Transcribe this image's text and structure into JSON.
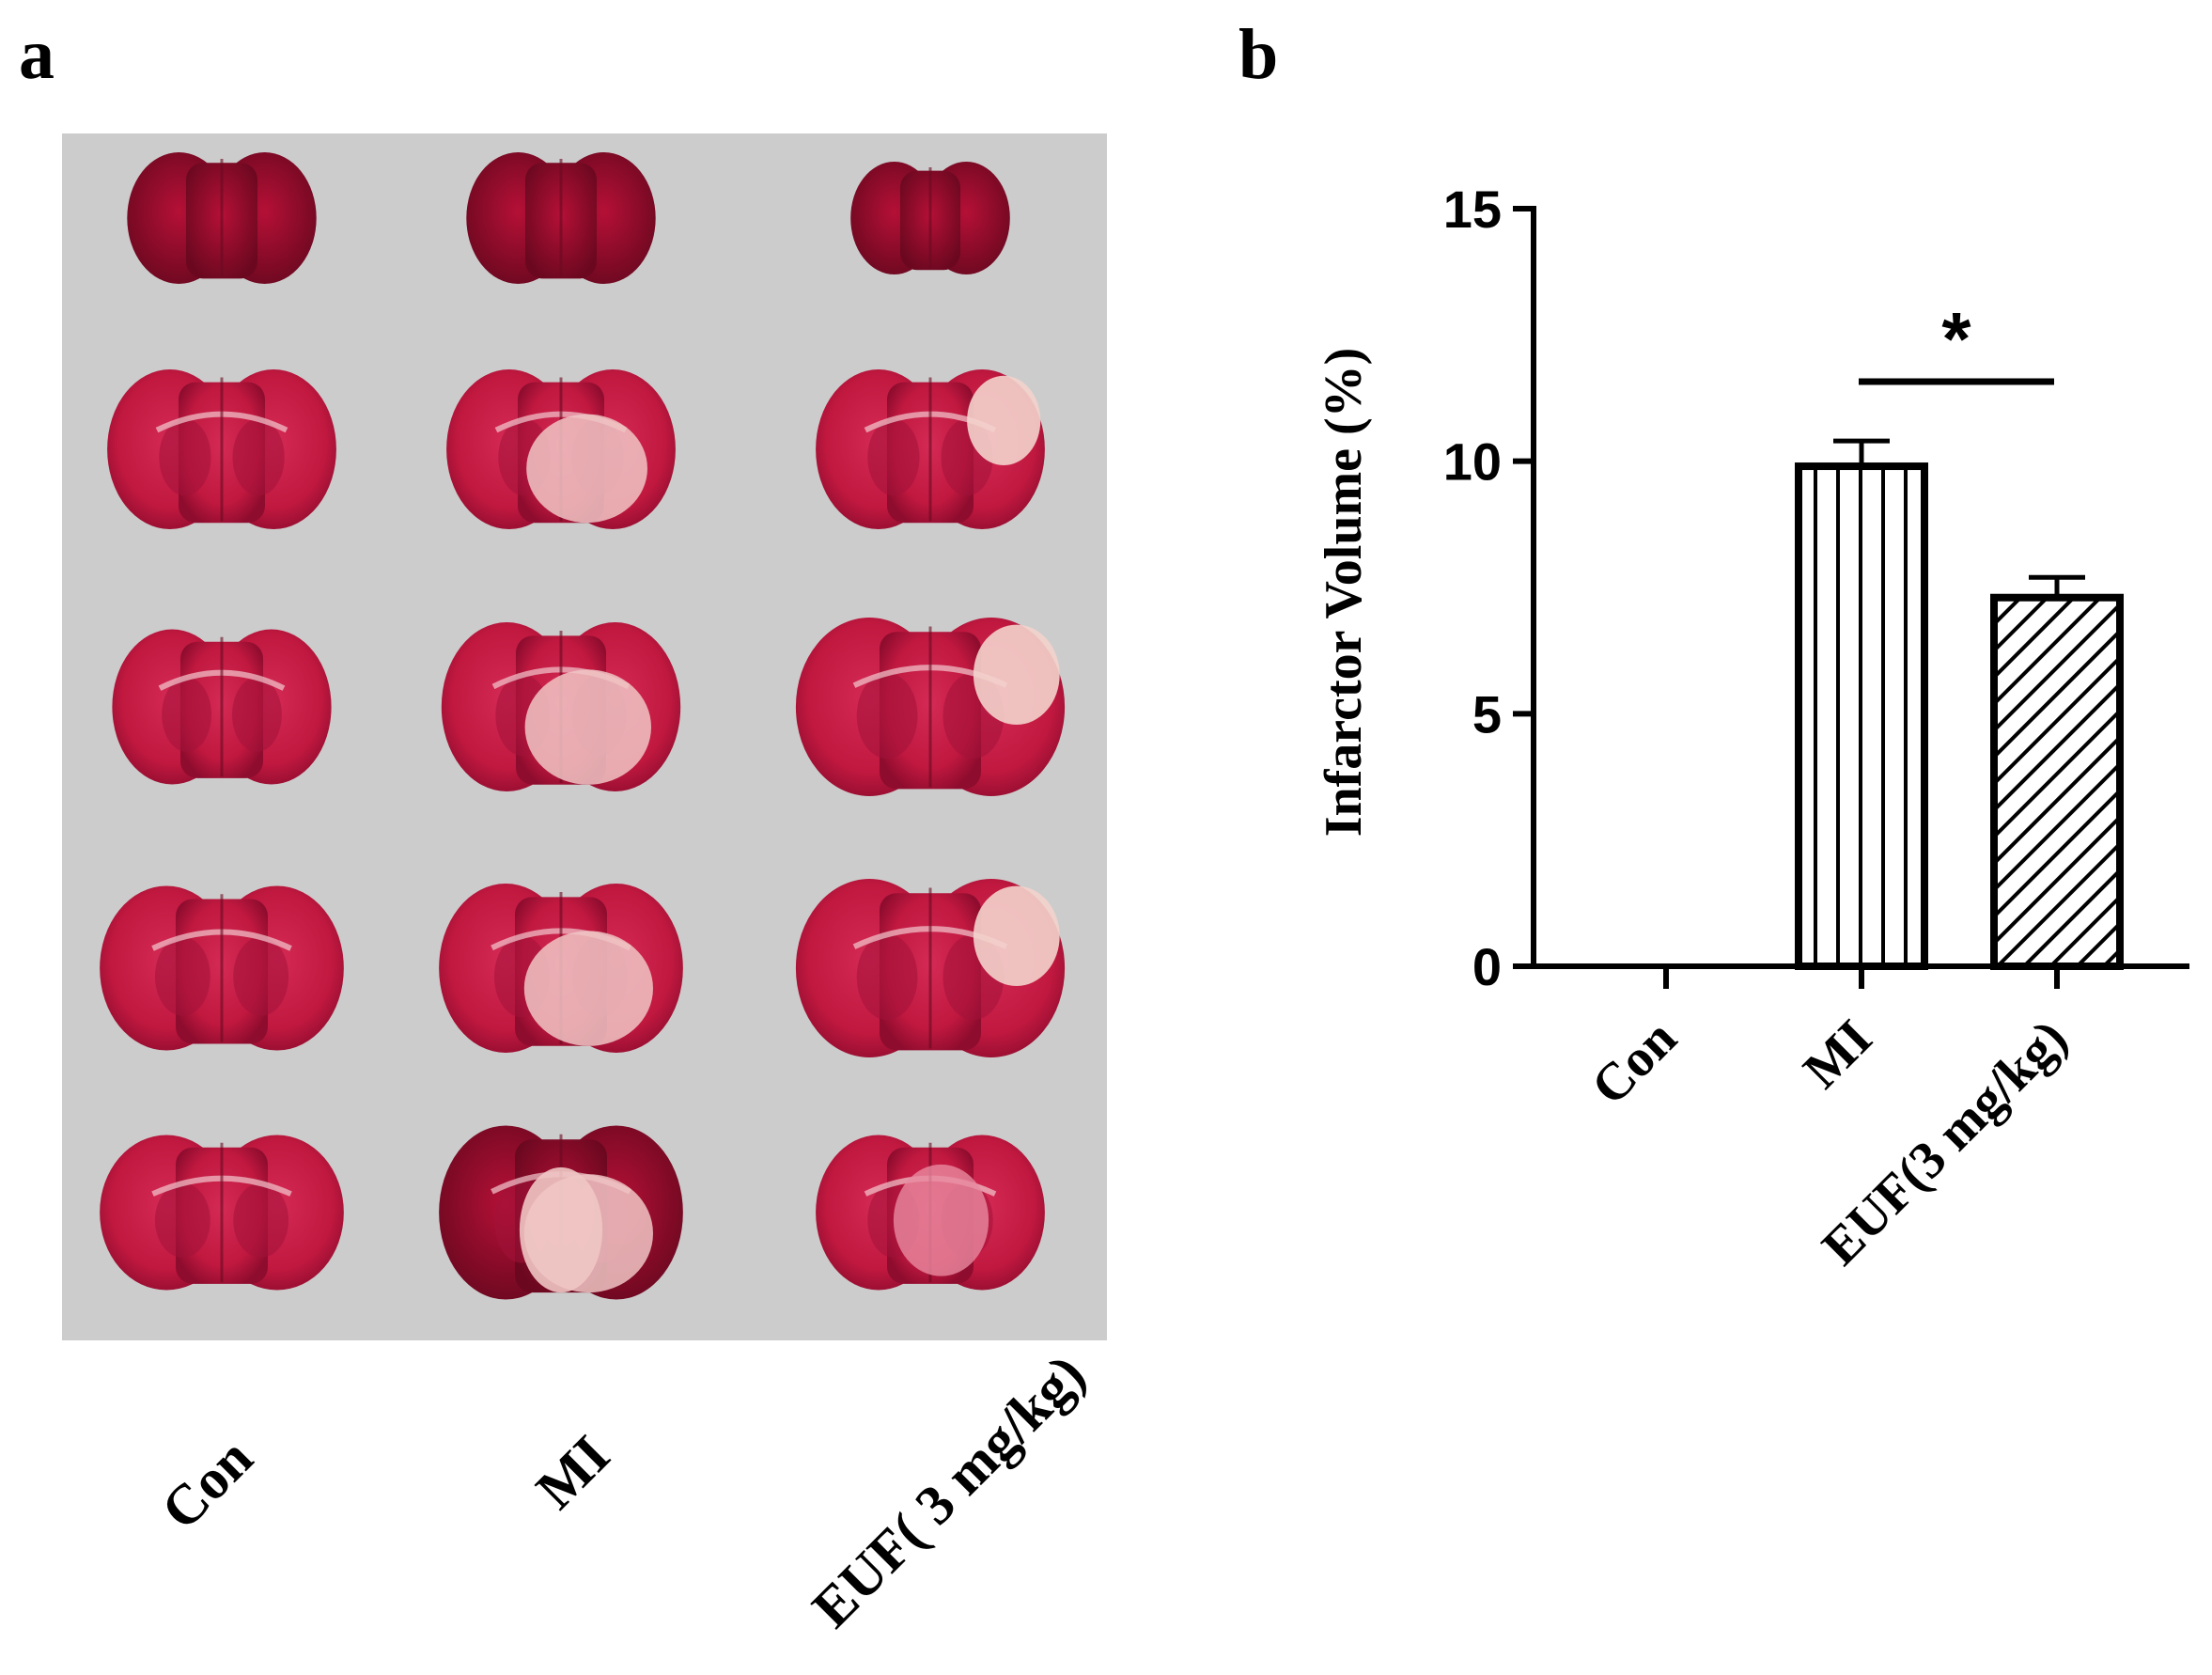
{
  "panels": {
    "a": {
      "letter": "a",
      "group_labels": [
        "Con",
        "MI",
        "EUF( 3 mg/kg)"
      ]
    },
    "b": {
      "letter": "b"
    }
  },
  "chart_data": {
    "type": "bar",
    "title": "",
    "xlabel": "",
    "ylabel": "Infarctor Volume (%)",
    "ylim": [
      0,
      15
    ],
    "yticks": [
      0,
      5,
      10,
      15
    ],
    "categories": [
      "Con",
      "MI",
      "EUF(3 mg/kg)"
    ],
    "values": [
      0,
      9.9,
      7.3
    ],
    "errors": [
      0,
      0.5,
      0.4
    ],
    "fill_patterns": [
      "none",
      "vertical",
      "diagonal"
    ],
    "significance": [
      {
        "between": [
          "MI",
          "EUF(3 mg/kg)"
        ],
        "label": "*"
      }
    ]
  },
  "colors": {
    "photo_background": "#cccccc",
    "tissue_red": "#c0183f",
    "tissue_dark": "#7d0a26",
    "tissue_pale": "#f0c6c4",
    "ink": "#000000"
  }
}
